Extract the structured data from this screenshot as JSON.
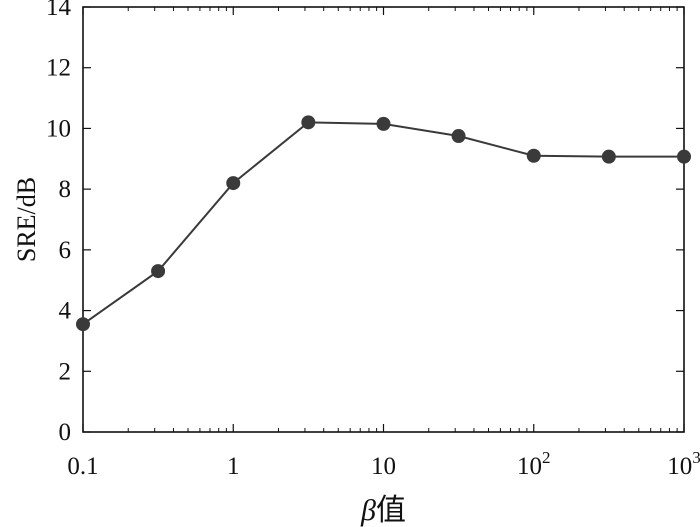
{
  "chart_data": {
    "type": "line",
    "x_scale": "log",
    "x": [
      0.1,
      0.316,
      1,
      3.16,
      10,
      31.6,
      100,
      316,
      1000
    ],
    "series": [
      {
        "values": [
          3.55,
          5.3,
          8.2,
          10.2,
          10.15,
          9.75,
          9.1,
          9.07,
          9.07
        ],
        "color": "#3a3a3a",
        "marker": "circle"
      }
    ],
    "xlim": [
      0.1,
      1000
    ],
    "ylim": [
      0,
      14
    ],
    "x_ticks": [
      {
        "value": 0.1,
        "base": "0.1",
        "exp": ""
      },
      {
        "value": 1,
        "base": "1",
        "exp": ""
      },
      {
        "value": 10,
        "base": "10",
        "exp": ""
      },
      {
        "value": 100,
        "base": "10",
        "exp": "2"
      },
      {
        "value": 1000,
        "base": "10",
        "exp": "3"
      }
    ],
    "y_ticks": [
      0,
      2,
      4,
      6,
      8,
      10,
      12,
      14
    ],
    "xlabel_symbol": "β",
    "xlabel_text": "值",
    "ylabel": "SRE/dB",
    "grid": false
  }
}
